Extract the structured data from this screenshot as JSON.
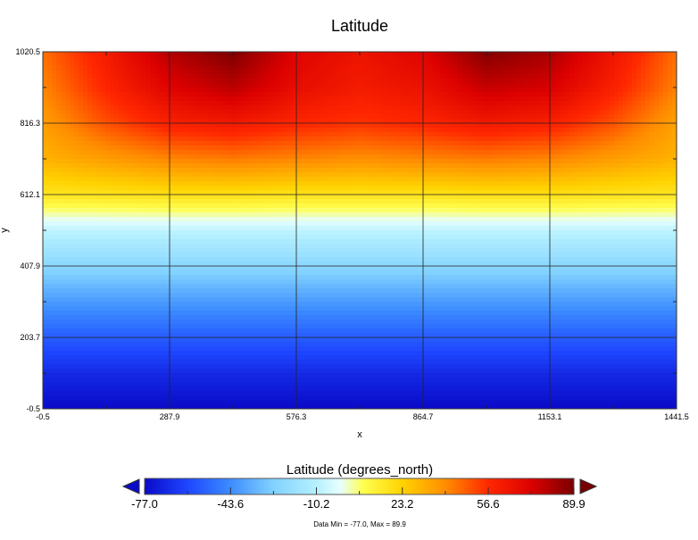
{
  "chart_data": {
    "type": "heatmap",
    "title": "Latitude",
    "xlabel": "x",
    "ylabel": "y",
    "xlim": [
      -0.5,
      1441.5
    ],
    "ylim": [
      -0.5,
      1020.5
    ],
    "x_ticks": [
      "-0.5",
      "287.9",
      "576.3",
      "864.7",
      "1153.1",
      "1441.5"
    ],
    "y_ticks": [
      "-0.5",
      "203.7",
      "407.9",
      "612.1",
      "816.3",
      "1020.5"
    ],
    "grid": true,
    "x": [
      0,
      144,
      288,
      432,
      576,
      720,
      864,
      1008,
      1152,
      1296,
      1441
    ],
    "y": [
      0,
      102,
      204,
      306,
      408,
      510,
      612,
      714,
      816,
      918,
      1020
    ],
    "z": [
      [
        -77,
        -77,
        -77,
        -77,
        -77,
        -77,
        -77,
        -77,
        -77,
        -77,
        -77
      ],
      [
        -68,
        -68,
        -68,
        -68,
        -68,
        -68,
        -68,
        -68,
        -68,
        -68,
        -68
      ],
      [
        -55,
        -55,
        -55,
        -55,
        -55,
        -55,
        -55,
        -55,
        -55,
        -55,
        -55
      ],
      [
        -40,
        -40,
        -40,
        -40,
        -40,
        -40,
        -40,
        -40,
        -40,
        -40,
        -40
      ],
      [
        -24,
        -24,
        -24,
        -24,
        -24,
        -24,
        -24,
        -24,
        -24,
        -24,
        -24
      ],
      [
        -8,
        -8,
        -8,
        -8,
        -8,
        -8,
        -8,
        -8,
        -8,
        -8,
        -8
      ],
      [
        17,
        18,
        19,
        19,
        18,
        18,
        18,
        19,
        19,
        18,
        17
      ],
      [
        31,
        36,
        41,
        43,
        41,
        39,
        41,
        43,
        41,
        36,
        31
      ],
      [
        36,
        50,
        60,
        63,
        58,
        55,
        58,
        63,
        60,
        50,
        35
      ],
      [
        41,
        58,
        72,
        79,
        68,
        62,
        66,
        77,
        74,
        60,
        42
      ],
      [
        45,
        62,
        80,
        89,
        72,
        65,
        72,
        88,
        82,
        65,
        45
      ]
    ],
    "colorbar": {
      "label": "Latitude (degrees_north)",
      "range": [
        -77.0,
        89.9
      ],
      "ticks": [
        "-77.0",
        "-43.6",
        "-10.2",
        "23.2",
        "56.6",
        "89.9"
      ],
      "extend": "both",
      "stops": [
        [
          -77.0,
          "#0a0ac8"
        ],
        [
          -60.3,
          "#1e46ff"
        ],
        [
          -43.6,
          "#3c8cff"
        ],
        [
          -26.9,
          "#82d2ff"
        ],
        [
          -10.2,
          "#b4f0ff"
        ],
        [
          -1.0,
          "#e6ffff"
        ],
        [
          8.0,
          "#ffff50"
        ],
        [
          23.2,
          "#ffd200"
        ],
        [
          40.0,
          "#ff8c00"
        ],
        [
          56.6,
          "#ff2800"
        ],
        [
          73.3,
          "#dc0000"
        ],
        [
          89.9,
          "#780000"
        ]
      ]
    },
    "stats": "Data Min = -77.0, Max = 89.9"
  }
}
